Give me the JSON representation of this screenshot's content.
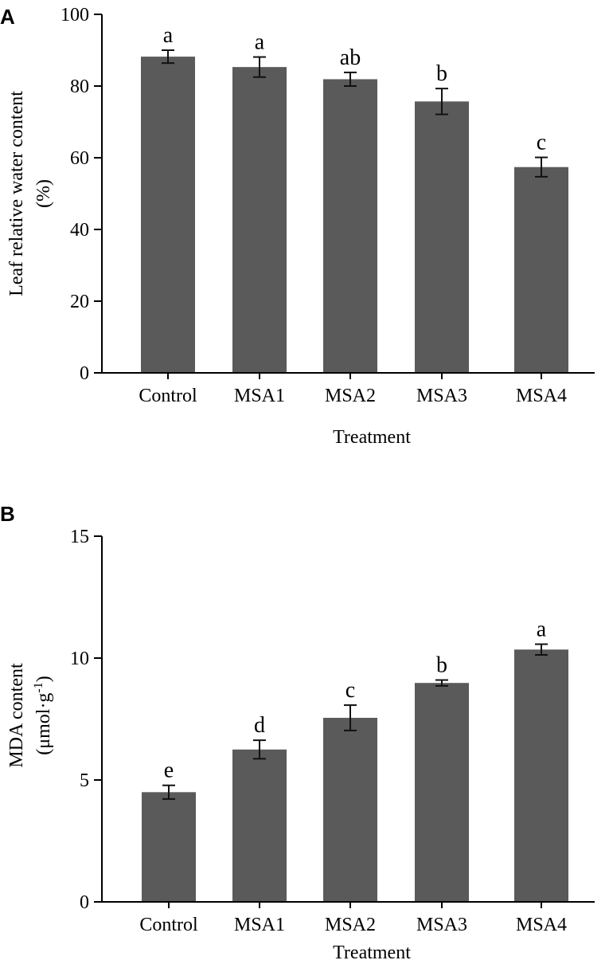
{
  "chart_data": [
    {
      "panel_label": "A",
      "type": "bar",
      "categories": [
        "Control",
        "MSA1",
        "MSA2",
        "MSA3",
        "MSA4"
      ],
      "values": [
        88.2,
        85.3,
        81.9,
        75.7,
        57.4
      ],
      "errors": [
        1.8,
        2.8,
        1.9,
        3.6,
        2.7
      ],
      "significance": [
        "a",
        "a",
        "ab",
        "b",
        "c"
      ],
      "ylim": [
        0,
        100
      ],
      "yticks": [
        0,
        20,
        40,
        60,
        80,
        100
      ],
      "ylabel_line1": "Leaf relative water content",
      "ylabel_line2": "(%)",
      "xlabel": "Treatment",
      "bar_color": "#5a5a5a"
    },
    {
      "panel_label": "B",
      "type": "bar",
      "categories": [
        "Control",
        "MSA1",
        "MSA2",
        "MSA3",
        "MSA4"
      ],
      "values": [
        4.5,
        6.25,
        7.55,
        8.98,
        10.35
      ],
      "errors": [
        0.28,
        0.38,
        0.52,
        0.12,
        0.22
      ],
      "significance": [
        "e",
        "d",
        "c",
        "b",
        "a"
      ],
      "ylim": [
        0,
        15
      ],
      "yticks": [
        0,
        5,
        10,
        15
      ],
      "ylabel_line1": "MDA content",
      "ylabel_line2_base": "(μmol·g",
      "ylabel_line2_sup": "-1",
      "ylabel_line2_end": ")",
      "xlabel": "Treatment",
      "bar_color": "#5a5a5a"
    }
  ]
}
